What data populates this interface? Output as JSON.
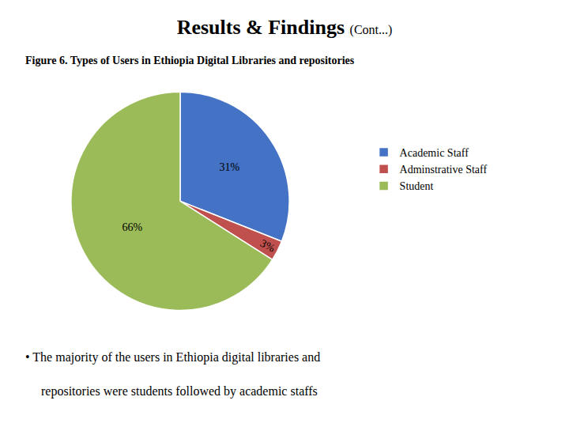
{
  "chart_data": {
    "type": "pie",
    "title": "Results & Findings",
    "subtitle": "(Cont...)",
    "categories": [
      "Academic Staff",
      "Adminstrative Staff",
      "Student"
    ],
    "values": [
      31,
      3,
      66
    ],
    "value_labels": [
      "31%",
      "3%",
      "66%"
    ],
    "colors": [
      "#4472C4",
      "#C0504D",
      "#9BBB59"
    ],
    "data_labels": true,
    "legend": "right",
    "annotations": [
      "Figure 6. Types of Users in Ethiopia Digital Libraries and repositories",
      "• The majority of the users in Ethiopia digital libraries and",
      "repositories were students followed by academic staffs"
    ]
  }
}
